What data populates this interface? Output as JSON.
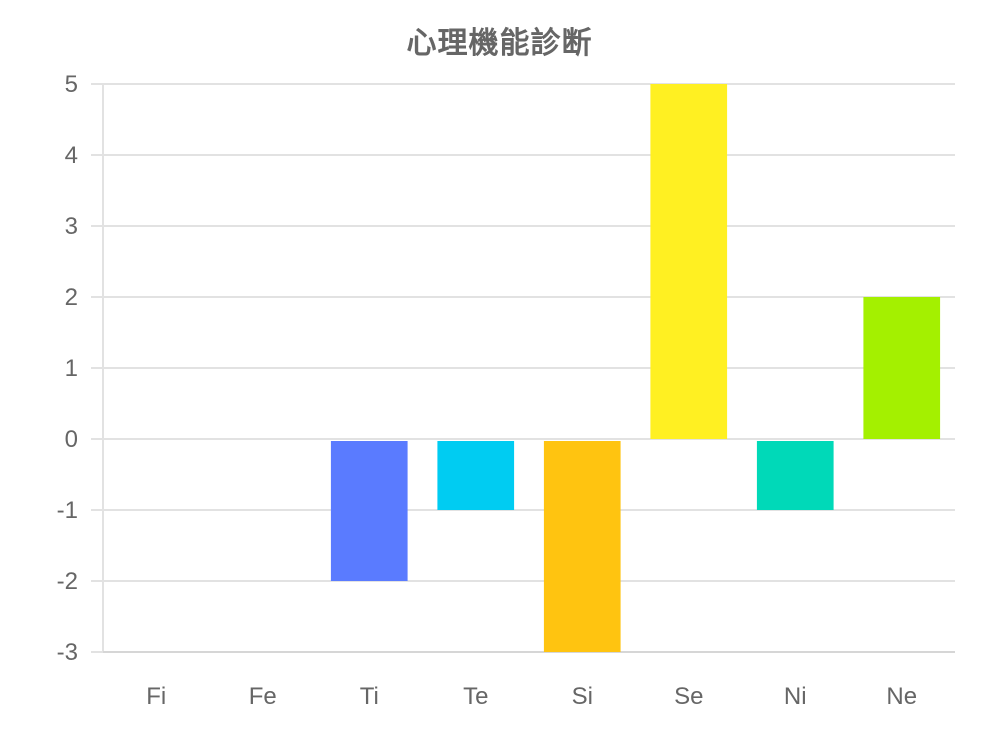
{
  "chart_data": {
    "type": "bar",
    "title": "心理機能診断",
    "categories": [
      "Fi",
      "Fe",
      "Ti",
      "Te",
      "Si",
      "Se",
      "Ni",
      "Ne"
    ],
    "values": [
      0,
      0,
      -2,
      -1,
      -3,
      5,
      -1,
      2
    ],
    "colors": [
      "#ff5a5f",
      "#ff8c42",
      "#5a7bff",
      "#00ccf2",
      "#ffc410",
      "#fff022",
      "#00d9b8",
      "#a4f000"
    ],
    "ylim": [
      -3,
      5
    ],
    "yticks": [
      5,
      4,
      3,
      2,
      1,
      0,
      -1,
      -2,
      -3
    ],
    "xlabel": "",
    "ylabel": "",
    "grid": true,
    "legend": "none"
  }
}
